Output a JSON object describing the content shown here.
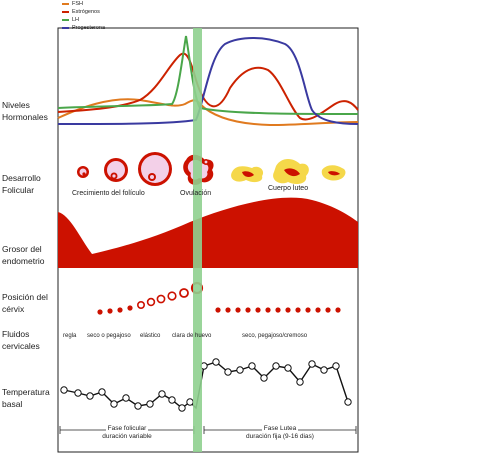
{
  "legend": [
    {
      "label": "FSH",
      "color": "#e07a1f"
    },
    {
      "label": "Estrógenos",
      "color": "#cc2200"
    },
    {
      "label": "LH",
      "color": "#4aa64a"
    },
    {
      "label": "Progesterona",
      "color": "#3a3aa0"
    }
  ],
  "rows": {
    "hormones": "Niveles\nHormonales",
    "follicle": "Desarrollo\nFolicular",
    "endometrium": "Grosor del\nendometrio",
    "cervix": "Posición del\ncérvix",
    "fluids": "Fluidos\ncervicales",
    "temperature": "Temperatura\nbasal"
  },
  "follicle_labels": {
    "growth": "Crecimiento del folículo",
    "ovulation": "Ovulación",
    "corpus_luteum": "Cuerpo luteo"
  },
  "fluid_labels": {
    "period": "regla",
    "dry": "seco o pegajoso",
    "elastic": "elástico",
    "clear": "clara de huevo",
    "luteal": "seco, pegajoso/cremoso"
  },
  "phases": {
    "follicular_name": "Fase folicular",
    "follicular_duration": "duración variable",
    "luteal_name": "Fase Lutea",
    "luteal_duration": "duración fija (9-16 dias)"
  },
  "colors": {
    "red": "#cc1100",
    "green_band": "#8fd08f",
    "temp_line": "#111111"
  }
}
